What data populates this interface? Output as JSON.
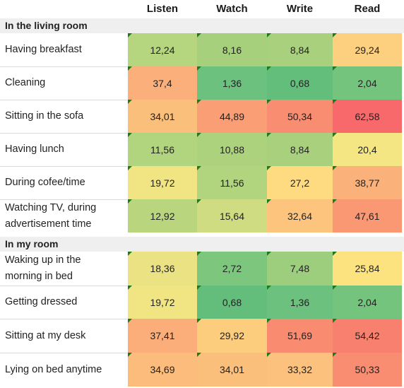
{
  "columns": [
    "Listen",
    "Watch",
    "Write",
    "Read"
  ],
  "sections": [
    {
      "title": "In the living room",
      "rows": [
        {
          "label": [
            "Having breakfast"
          ],
          "values": [
            "12,24",
            "8,16",
            "8,84",
            "29,24"
          ],
          "colors": [
            "#b6d57f",
            "#a6d07c",
            "#a9d17d",
            "#fdd07f"
          ]
        },
        {
          "label": [
            "Cleaning"
          ],
          "values": [
            "37,4",
            "1,36",
            "0,68",
            "2,04"
          ],
          "colors": [
            "#fbb07b",
            "#6cc17e",
            "#63be7b",
            "#75c47e"
          ]
        },
        {
          "label": [
            "Sitting in the sofa"
          ],
          "values": [
            "34,01",
            "44,89",
            "50,34",
            "62,58"
          ],
          "colors": [
            "#fbbf7c",
            "#fa9e75",
            "#f98d72",
            "#f8696b"
          ]
        },
        {
          "label": [
            "Having lunch"
          ],
          "values": [
            "11,56",
            "10,88",
            "8,84",
            "20,4"
          ],
          "colors": [
            "#b1d47f",
            "#add27e",
            "#a9d17d",
            "#f4e683"
          ]
        },
        {
          "label": [
            "During cofee/time"
          ],
          "values": [
            "19,72",
            "11,56",
            "27,2",
            "38,77"
          ],
          "colors": [
            "#f1e583",
            "#b1d47f",
            "#fedb81",
            "#fab17a"
          ]
        },
        {
          "label": [
            "Watching TV, during",
            "advertisement time"
          ],
          "values": [
            "12,92",
            "15,64",
            "32,64",
            "47,61"
          ],
          "colors": [
            "#b9d67f",
            "#cfdc81",
            "#fcc47d",
            "#f99873"
          ]
        }
      ]
    },
    {
      "title": "In my room",
      "rows": [
        {
          "label": [
            "Waking up in the",
            "morning in bed"
          ],
          "values": [
            "18,36",
            "2,72",
            "7,48",
            "25,84"
          ],
          "colors": [
            "#ebe383",
            "#7cc67e",
            "#9dce7d",
            "#fde380"
          ]
        },
        {
          "label": [
            "Getting dressed"
          ],
          "values": [
            "19,72",
            "0,68",
            "1,36",
            "2,04"
          ],
          "colors": [
            "#f1e583",
            "#63be7b",
            "#6cc17e",
            "#75c47e"
          ]
        },
        {
          "label": [
            "Sitting at my desk"
          ],
          "values": [
            "37,41",
            "29,92",
            "51,69",
            "54,42"
          ],
          "colors": [
            "#fbad7a",
            "#fdcd7e",
            "#f98b71",
            "#f8806e"
          ]
        },
        {
          "label": [
            "Lying on bed anytime"
          ],
          "values": [
            "34,69",
            "34,01",
            "33,32",
            "50,33"
          ],
          "colors": [
            "#fbbc7c",
            "#fbbf7c",
            "#fcc27d",
            "#f98d72"
          ]
        }
      ]
    }
  ]
}
